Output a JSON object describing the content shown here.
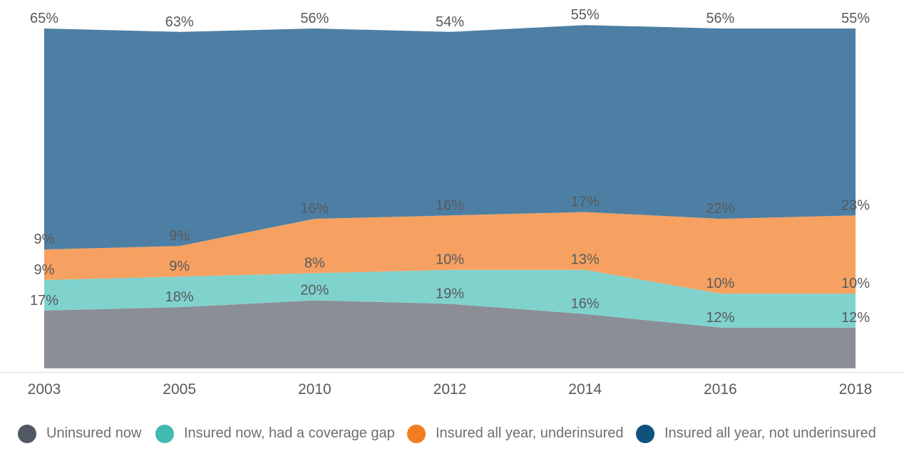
{
  "chart_data": {
    "type": "area",
    "stacked": true,
    "categories": [
      "2003",
      "2005",
      "2010",
      "2012",
      "2014",
      "2016",
      "2018"
    ],
    "series": [
      {
        "id": "uninsured-now",
        "name": "Uninsured now",
        "values": [
          17,
          18,
          20,
          19,
          16,
          12,
          12
        ],
        "area_color": "#8b8e96",
        "legend_color": "#505864"
      },
      {
        "id": "insured-now-had-coverage-gap",
        "name": "Insured now, had a coverage gap",
        "values": [
          9,
          9,
          8,
          10,
          13,
          10,
          10
        ],
        "area_color": "#80d2cd",
        "legend_color": "#41bab1"
      },
      {
        "id": "insured-all-year-underinsured",
        "name": "Insured all year, underinsured",
        "values": [
          9,
          9,
          16,
          16,
          17,
          22,
          23
        ],
        "area_color": "#f6a161",
        "legend_color": "#f07e20"
      },
      {
        "id": "insured-all-year-not-underinsured",
        "name": "Insured all year, not underinsured",
        "values": [
          65,
          63,
          56,
          54,
          55,
          56,
          55
        ],
        "area_color": "#4d7fa4",
        "legend_color": "#0f527e"
      }
    ],
    "value_suffix": "%",
    "ylim": [
      0,
      105
    ],
    "grid": false,
    "legend_position": "bottom",
    "colors": {
      "axis_line": "#d9dadb",
      "data_label_text": "#58595b",
      "axis_label_text": "#58595b",
      "legend_text": "#6d6e70",
      "background": "#ffffff"
    }
  }
}
